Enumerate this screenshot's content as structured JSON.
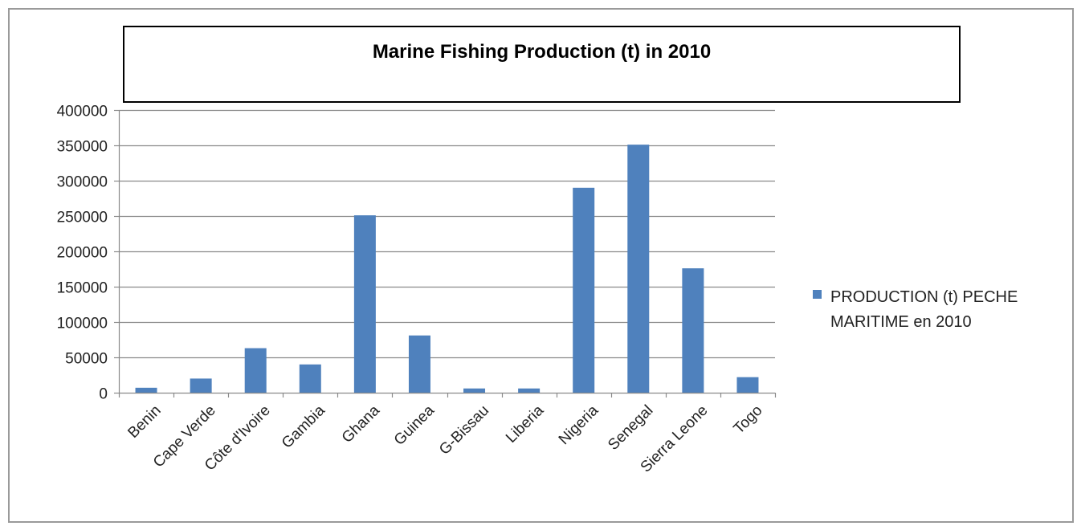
{
  "chart_data": {
    "type": "bar",
    "title": "Marine Fishing Production (t) in 2010",
    "xlabel": "",
    "ylabel": "",
    "categories": [
      "Benin",
      "Cape Verde",
      "Côte d'Ivoire",
      "Gambia",
      "Ghana",
      "Guinea",
      "G-Bissau",
      "Liberia",
      "Nigeria",
      "Senegal",
      "Sierra Leone",
      "Togo"
    ],
    "series": [
      {
        "name": "PRODUCTION (t) PECHE MARITIME en 2010",
        "values": [
          7000,
          20000,
          63000,
          40000,
          251000,
          81000,
          6000,
          6000,
          290000,
          351000,
          176000,
          22000
        ]
      }
    ],
    "ylim": [
      0,
      400000
    ],
    "yticks": [
      "0",
      "50000",
      "100000",
      "150000",
      "200000",
      "250000",
      "300000",
      "350000",
      "400000"
    ],
    "grid": true,
    "legend_position": "right",
    "colors": {
      "bar": "#4f81bd",
      "grid": "#8a8a8a",
      "axis": "#8a8a8a",
      "frame": "#9a9a9a"
    },
    "legend_lines": [
      "PRODUCTION (t) PECHE",
      "MARITIME en 2010"
    ]
  }
}
